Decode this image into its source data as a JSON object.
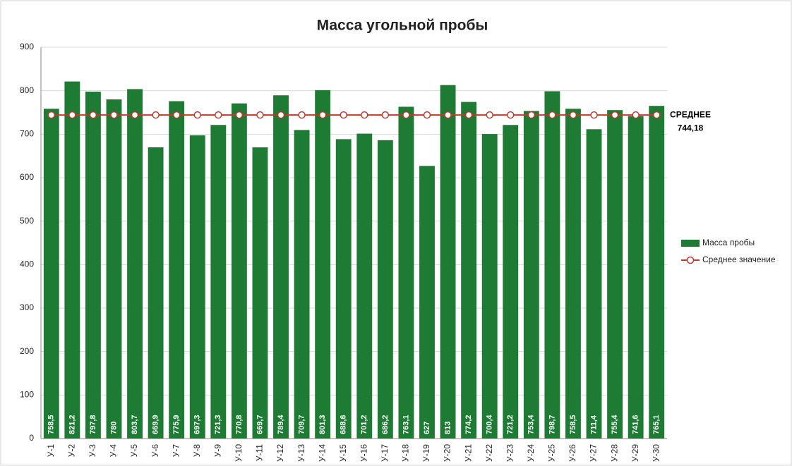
{
  "chart_data": {
    "type": "bar",
    "title": "Масса угольной пробы",
    "categories": [
      "У-1",
      "У-2",
      "У-3",
      "У-4",
      "У-5",
      "У-6",
      "У-7",
      "У-8",
      "У-9",
      "У-10",
      "У-11",
      "У-12",
      "У-13",
      "У-14",
      "У-15",
      "У-16",
      "У-17",
      "У-18",
      "У-19",
      "У-20",
      "У-21",
      "У-22",
      "У-23",
      "У-24",
      "У-25",
      "У-26",
      "У-27",
      "У-28",
      "У-29",
      "У-30"
    ],
    "series": [
      {
        "name": "Масса пробы",
        "type": "bar",
        "color": "#1e7b34",
        "values": [
          758.5,
          821.2,
          797.8,
          780,
          803.7,
          669.9,
          775.9,
          697.3,
          721.3,
          770.8,
          669.7,
          789.4,
          709.7,
          801.3,
          688.6,
          701.2,
          686.2,
          763.1,
          627,
          813,
          774.2,
          700.4,
          721.2,
          753.4,
          798.7,
          758.5,
          711.4,
          755.4,
          741.6,
          765.1
        ],
        "value_labels": [
          "758,5",
          "821,2",
          "797,8",
          "780",
          "803,7",
          "669,9",
          "775,9",
          "697,3",
          "721,3",
          "770,8",
          "669,7",
          "789,4",
          "709,7",
          "801,3",
          "688,6",
          "701,2",
          "686,2",
          "763,1",
          "627",
          "813",
          "774,2",
          "700,4",
          "721,2",
          "753,4",
          "798,7",
          "758,5",
          "711,4",
          "755,4",
          "741,6",
          "765,1"
        ]
      },
      {
        "name": "Среднее значение",
        "type": "line",
        "color": "#c0392b",
        "values": [
          744.18,
          744.18,
          744.18,
          744.18,
          744.18,
          744.18,
          744.18,
          744.18,
          744.18,
          744.18,
          744.18,
          744.18,
          744.18,
          744.18,
          744.18,
          744.18,
          744.18,
          744.18,
          744.18,
          744.18,
          744.18,
          744.18,
          744.18,
          744.18,
          744.18,
          744.18,
          744.18,
          744.18,
          744.18,
          744.18
        ]
      }
    ],
    "annotations": [
      "СРЕДНЕЕ",
      "744,18"
    ],
    "ylim": [
      0,
      900
    ],
    "yticks": [
      0,
      100,
      200,
      300,
      400,
      500,
      600,
      700,
      800,
      900
    ],
    "grid": true,
    "legend": "right"
  }
}
